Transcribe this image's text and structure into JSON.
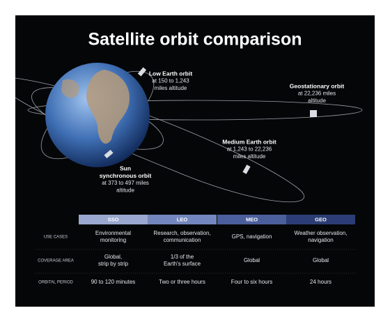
{
  "title": "Satellite orbit comparison",
  "orbits": [
    {
      "name": [
        "Low Earth orbit"
      ],
      "detail": [
        "at 150 to 1,243",
        "miles altitude"
      ]
    },
    {
      "name": [
        "Geostationary orbit"
      ],
      "detail": [
        "at 22,236 miles",
        "altitude"
      ]
    },
    {
      "name": [
        "Medium Earth orbit"
      ],
      "detail": [
        "at 1,243 to 22,236",
        "miles altitude"
      ]
    },
    {
      "name": [
        "Sun",
        "synchronous orbit"
      ],
      "detail": [
        "at 373 to 497 miles",
        "altitude"
      ]
    }
  ],
  "table": {
    "columns": [
      "SSO",
      "LEO",
      "MEO",
      "GEO"
    ],
    "rows": [
      {
        "label": "USE CASES",
        "cells": [
          [
            "Environmental",
            "monitoring"
          ],
          [
            "Research, observation,",
            "communication"
          ],
          [
            "GPS, navigation"
          ],
          [
            "Weather observation,",
            "navigation"
          ]
        ]
      },
      {
        "label": "COVERAGE AREA",
        "cells": [
          [
            "Global,",
            "strip by strip"
          ],
          [
            "1/3 of the",
            "Earth's surface"
          ],
          [
            "Global"
          ],
          [
            "Global"
          ]
        ]
      },
      {
        "label": "ORBITAL PERIOD",
        "cells": [
          [
            "90 to 120 minutes"
          ],
          [
            "Two or three hours"
          ],
          [
            "Four to six hours"
          ],
          [
            "24 hours"
          ]
        ]
      }
    ]
  }
}
